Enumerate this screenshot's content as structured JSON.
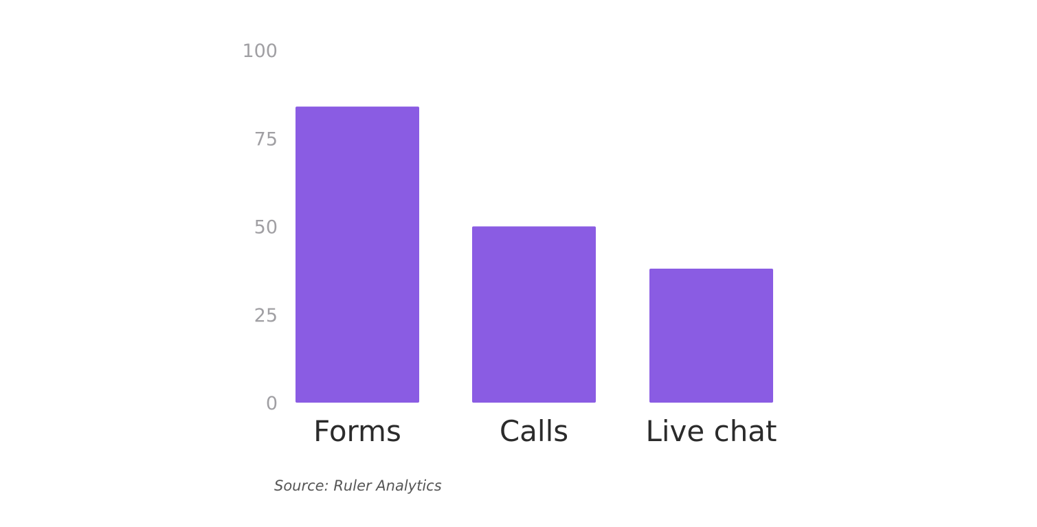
{
  "chart_data": {
    "type": "bar",
    "categories": [
      "Forms",
      "Calls",
      "Live chat"
    ],
    "values": [
      84,
      50,
      38
    ],
    "ylim": [
      0,
      100
    ],
    "yticks": [
      0,
      25,
      50,
      75,
      100
    ],
    "grid": false,
    "legend": "none",
    "bar_color": "#8a5ce3"
  },
  "source": "Source: Ruler Analytics"
}
